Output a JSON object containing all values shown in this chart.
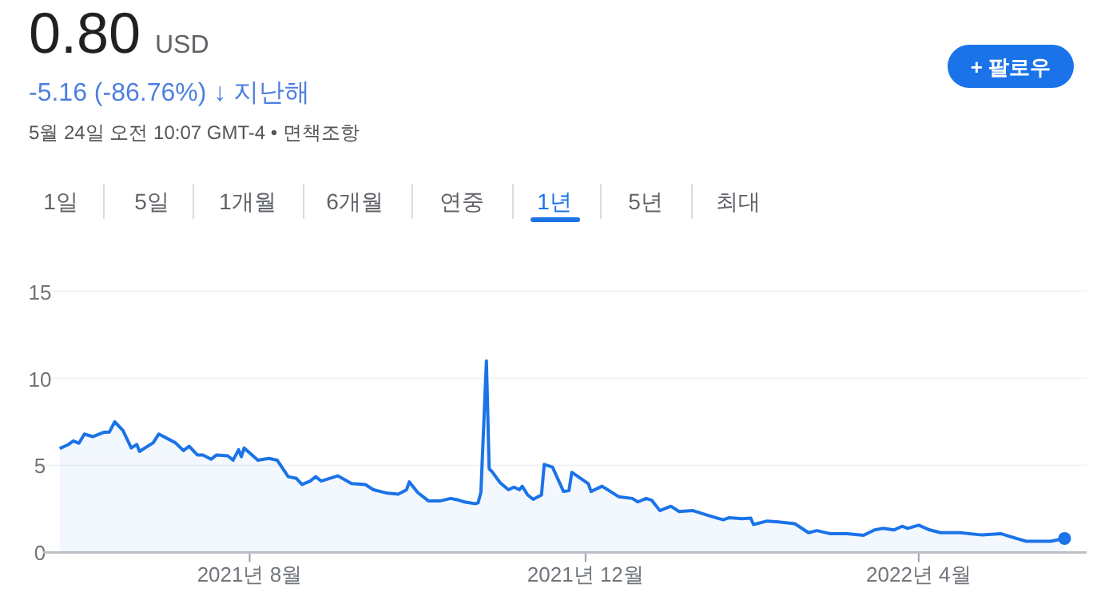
{
  "chart_data": {
    "type": "area",
    "title": "0.80",
    "annotations": [
      "USD",
      "-5.16 (-86.76%) ↓ 지난해",
      "5월 24일 오전 10:07 GMT-4 • 면책조항",
      "1일",
      "5일",
      "1개월",
      "6개월",
      "연중",
      "1년",
      "5년",
      "최대",
      "+ 팔로우"
    ],
    "x": [
      "2021-05-24",
      "2021-05-27",
      "2021-05-29",
      "2021-05-31",
      "2021-06-02",
      "2021-06-05",
      "2021-06-09",
      "2021-06-11",
      "2021-06-13",
      "2021-06-16",
      "2021-06-19",
      "2021-06-21",
      "2021-06-22",
      "2021-06-27",
      "2021-06-29",
      "2021-07-05",
      "2021-07-08",
      "2021-07-10",
      "2021-07-13",
      "2021-07-15",
      "2021-07-18",
      "2021-07-20",
      "2021-07-24",
      "2021-07-26",
      "2021-07-28",
      "2021-07-29",
      "2021-07-30",
      "2021-08-04",
      "2021-08-08",
      "2021-08-11",
      "2021-08-15",
      "2021-08-18",
      "2021-08-20",
      "2021-08-23",
      "2021-08-25",
      "2021-08-27",
      "2021-09-02",
      "2021-09-07",
      "2021-09-12",
      "2021-09-15",
      "2021-09-20",
      "2021-09-24",
      "2021-09-27",
      "2021-09-28",
      "2021-10-01",
      "2021-10-05",
      "2021-10-09",
      "2021-10-13",
      "2021-10-16",
      "2021-10-18",
      "2021-10-22",
      "2021-10-23",
      "2021-10-24",
      "2021-10-26",
      "2021-10-27",
      "2021-10-28",
      "2021-10-31",
      "2021-11-03",
      "2021-11-05",
      "2021-11-07",
      "2021-11-08",
      "2021-11-10",
      "2021-11-12",
      "2021-11-15",
      "2021-11-16",
      "2021-11-19",
      "2021-11-23",
      "2021-11-25",
      "2021-11-26",
      "2021-12-02",
      "2021-12-03",
      "2021-12-07",
      "2021-12-13",
      "2021-12-18",
      "2021-12-20",
      "2021-12-23",
      "2021-12-25",
      "2021-12-28",
      "2022-01-01",
      "2022-01-04",
      "2022-01-09",
      "2022-01-15",
      "2022-01-20",
      "2022-01-22",
      "2022-01-27",
      "2022-01-30",
      "2022-01-31",
      "2022-02-05",
      "2022-02-09",
      "2022-02-15",
      "2022-02-20",
      "2022-02-23",
      "2022-02-28",
      "2022-03-06",
      "2022-03-12",
      "2022-03-16",
      "2022-03-19",
      "2022-03-23",
      "2022-03-26",
      "2022-03-28",
      "2022-04-01",
      "2022-04-05",
      "2022-04-09",
      "2022-04-16",
      "2022-04-24",
      "2022-05-01",
      "2022-05-04",
      "2022-05-10",
      "2022-05-19",
      "2022-05-24"
    ],
    "series": [
      {
        "color": "#1a73e8",
        "values": [
          5.97,
          6.18,
          6.4,
          6.27,
          6.8,
          6.65,
          6.9,
          6.9,
          7.5,
          7.0,
          6.0,
          6.2,
          5.8,
          6.3,
          6.8,
          6.3,
          5.85,
          6.1,
          5.6,
          5.6,
          5.35,
          5.6,
          5.55,
          5.3,
          5.9,
          5.5,
          6.0,
          5.3,
          5.4,
          5.3,
          4.35,
          4.25,
          3.9,
          4.1,
          4.35,
          4.1,
          4.4,
          3.95,
          3.9,
          3.6,
          3.4,
          3.35,
          3.6,
          4.05,
          3.45,
          2.95,
          2.95,
          3.1,
          3.0,
          2.9,
          2.8,
          2.85,
          3.45,
          11.0,
          4.8,
          4.65,
          4.0,
          3.6,
          3.75,
          3.6,
          3.8,
          3.3,
          3.05,
          3.3,
          5.05,
          4.9,
          3.5,
          3.55,
          4.6,
          3.95,
          3.5,
          3.8,
          3.2,
          3.1,
          2.9,
          3.1,
          3.0,
          2.4,
          2.65,
          2.35,
          2.4,
          2.1,
          1.87,
          1.99,
          1.93,
          1.97,
          1.6,
          1.8,
          1.75,
          1.65,
          1.13,
          1.25,
          1.07,
          1.07,
          0.98,
          1.29,
          1.38,
          1.29,
          1.5,
          1.38,
          1.56,
          1.29,
          1.13,
          1.13,
          1.0,
          1.07,
          0.92,
          0.64,
          0.64,
          0.8
        ]
      }
    ],
    "xlim": [
      "2021-05-18",
      "2022-06-01"
    ],
    "xticks": [
      {
        "value": "2021-08-01",
        "label": "2021년 8월"
      },
      {
        "value": "2021-12-01",
        "label": "2021년 12월"
      },
      {
        "value": "2022-04-01",
        "label": "2022년 4월"
      }
    ],
    "ylim": [
      0,
      15
    ],
    "yticks": [
      0,
      5,
      10,
      15
    ],
    "grid": "y"
  }
}
